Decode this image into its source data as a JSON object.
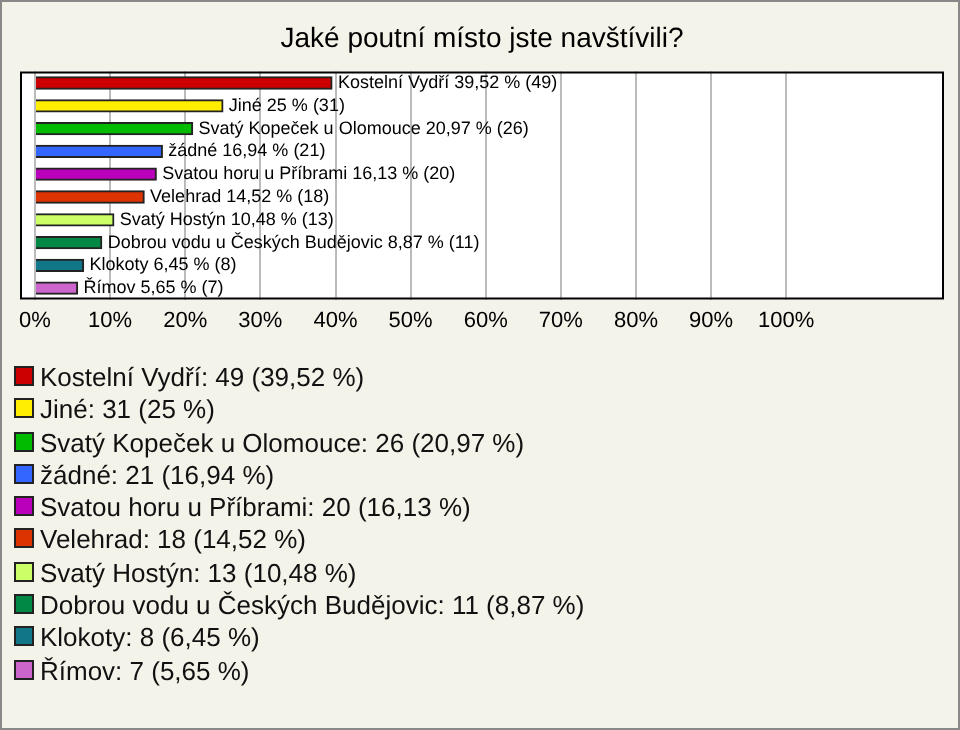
{
  "chart_data": {
    "type": "bar",
    "orientation": "horizontal",
    "title": "Jaké poutní místo jste navštívili?",
    "categories": [
      null,
      null,
      null,
      null,
      null,
      null,
      null,
      null,
      null,
      null
    ],
    "values": [
      39.52,
      25,
      20.97,
      16.94,
      16.13,
      14.52,
      10.48,
      8.87,
      6.45,
      5.65
    ],
    "value_labels": [
      "Kostelní Vydří 39,52 % (49)",
      "Jiné 25 % (31)",
      "Svatý Kopeček u Olomouce 20,97 % (26)",
      "žádné 16,94 % (21)",
      "Svatou horu u Příbrami 16,13 % (20)",
      "Velehrad 14,52 % (18)",
      "Svatý Hostýn 10,48 % (13)",
      "Dobrou vodu u Českých Budějovic 8,87 % (11)",
      "Klokoty 6,45 % (8)",
      "Římov 5,65 % (7)"
    ],
    "colors": [
      "#cc0000",
      "#ffee00",
      "#00bb00",
      "#3366ff",
      "#bb00bb",
      "#dd3300",
      "#ccff66",
      "#008844",
      "#117788",
      "#cc66cc"
    ],
    "xlim": [
      -2,
      121
    ],
    "xticks": [
      {
        "value": 0,
        "label": "0%"
      },
      {
        "value": 10,
        "label": "10%"
      },
      {
        "value": 20,
        "label": "20%"
      },
      {
        "value": 30,
        "label": "30%"
      },
      {
        "value": 40,
        "label": "40%"
      },
      {
        "value": 50,
        "label": "50%"
      },
      {
        "value": 60,
        "label": "60%"
      },
      {
        "value": 70,
        "label": "70%"
      },
      {
        "value": 80,
        "label": "80%"
      },
      {
        "value": 90,
        "label": "90%"
      },
      {
        "value": 100,
        "label": "100%"
      }
    ],
    "grid": "x",
    "tick_labels": "x",
    "annotations": [
      "Kostelní Vydří: 49 (39,52 %)",
      "Jiné: 31 (25 %)",
      "Svatý Kopeček u Olomouce: 26 (20,97 %)",
      "žádné: 21 (16,94 %)",
      "Svatou horu u Příbrami: 20 (16,13 %)",
      "Velehrad: 18 (14,52 %)",
      "Svatý Hostýn: 13 (10,48 %)",
      "Dobrou vodu u Českých Budějovic: 11 (8,87 %)",
      "Klokoty: 8 (6,45 %)",
      "Římov: 7 (5,65 %)"
    ]
  }
}
